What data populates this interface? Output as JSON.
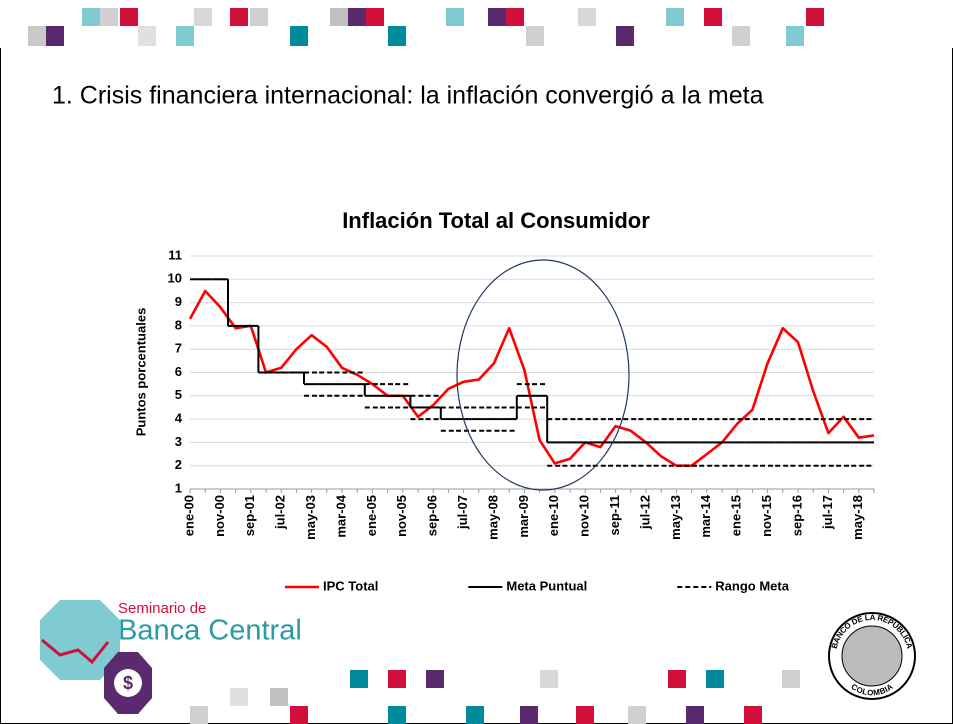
{
  "slide": {
    "heading": "1. Crisis financiera internacional: la inflación convergió a la meta"
  },
  "chart_data": {
    "type": "line",
    "title": "Inflación Total al Consumidor",
    "y_label": "Puntos porcentuales",
    "categories": [
      "ene-00",
      null,
      "nov-00",
      null,
      "sep-01",
      null,
      "jul-02",
      null,
      "may-03",
      null,
      "mar-04",
      null,
      "ene-05",
      null,
      "nov-05",
      null,
      "sep-06",
      null,
      "jul-07",
      null,
      "may-08",
      null,
      "mar-09",
      null,
      "ene-10",
      null,
      "nov-10",
      null,
      "sep-11",
      null,
      "jul-12",
      null,
      "may-13",
      null,
      "mar-14",
      null,
      "ene-15",
      null,
      "nov-15",
      null,
      "sep-16",
      null,
      "jul-17",
      null,
      "may-18",
      null
    ],
    "series": [
      {
        "name": "IPC Total",
        "color": "#ff0000",
        "line_style": "solid",
        "values": [
          8.3,
          9.5,
          8.8,
          7.9,
          8.0,
          6.0,
          6.2,
          7.0,
          7.6,
          7.1,
          6.2,
          5.9,
          5.5,
          5.0,
          5.0,
          4.1,
          4.6,
          5.3,
          5.6,
          5.7,
          6.4,
          7.9,
          6.1,
          3.1,
          2.1,
          2.3,
          3.0,
          2.8,
          3.7,
          3.5,
          3.0,
          2.4,
          2.0,
          2.0,
          2.5,
          3.0,
          3.8,
          4.4,
          6.4,
          7.9,
          7.3,
          5.2,
          3.4,
          4.1,
          3.2,
          3.3
        ]
      },
      {
        "name": "Meta Puntual",
        "color": "#000000",
        "line_style": "step",
        "values": [
          10,
          10,
          10,
          8,
          8,
          6,
          6,
          6,
          5.5,
          5.5,
          5.5,
          5.5,
          5,
          5,
          5,
          4.5,
          4.5,
          4,
          4,
          4,
          4,
          4,
          5,
          5,
          3,
          3,
          3,
          3,
          3,
          3,
          3,
          3,
          3,
          3,
          3,
          3,
          3,
          3,
          3,
          3,
          3,
          3,
          3,
          3,
          3,
          3
        ]
      },
      {
        "name": "Rango Meta",
        "color": "#000000",
        "line_style": "dashed",
        "values": [
          null,
          null,
          null,
          null,
          null,
          null,
          null,
          null,
          6,
          6,
          6,
          6,
          5.5,
          5.5,
          5.5,
          5,
          5,
          4.5,
          4.5,
          4.5,
          4.5,
          4.5,
          5.5,
          5.5,
          4,
          4,
          4,
          4,
          4,
          4,
          4,
          4,
          4,
          4,
          4,
          4,
          4,
          4,
          4,
          4,
          4,
          4,
          4,
          4,
          4,
          4
        ],
        "values_lower": [
          null,
          null,
          null,
          null,
          null,
          null,
          null,
          null,
          5,
          5,
          5,
          5,
          4.5,
          4.5,
          4.5,
          4,
          4,
          3.5,
          3.5,
          3.5,
          3.5,
          3.5,
          4.5,
          4.5,
          2,
          2,
          2,
          2,
          2,
          2,
          2,
          2,
          2,
          2,
          2,
          2,
          2,
          2,
          2,
          2,
          2,
          2,
          2,
          2,
          2,
          2
        ]
      }
    ],
    "ylim": [
      1,
      11
    ],
    "yticks": [
      1,
      2,
      3,
      4,
      5,
      6,
      7,
      8,
      9,
      10,
      11
    ],
    "grid": true,
    "legend": "bottom"
  },
  "logos": {
    "seminario_line1": "Seminario de",
    "seminario_line2": "Banca Central",
    "symbol": "$",
    "seal_top": "BANCO DE LA REPUBLICA",
    "seal_bottom": "COLOMBIA"
  }
}
